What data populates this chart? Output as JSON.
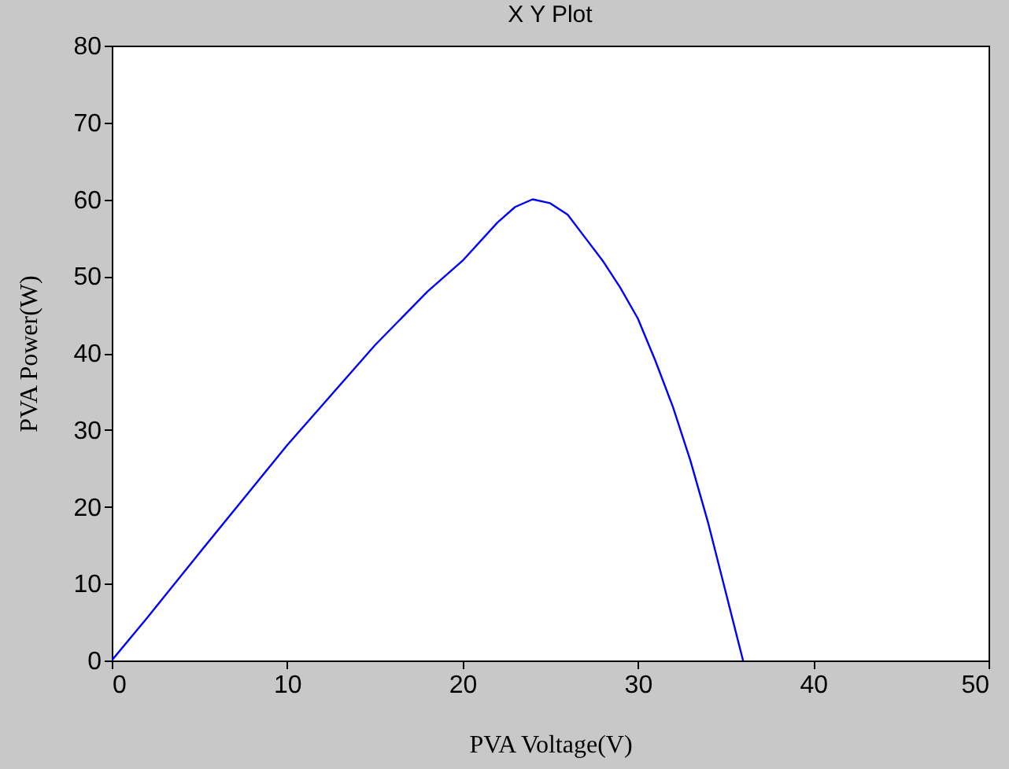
{
  "chart_data": {
    "type": "line",
    "title": "X Y Plot",
    "xlabel": "PVA  Voltage(V)",
    "ylabel": "PVA  Power(W)",
    "x": [
      0,
      2,
      5,
      10,
      15,
      18,
      20,
      22,
      23,
      24,
      25,
      26,
      27,
      28,
      29,
      30,
      31,
      32,
      33,
      34,
      35,
      36
    ],
    "series": [
      {
        "color": "#0000ff",
        "values": [
          0,
          5.5,
          14,
          28,
          41,
          48,
          52,
          57,
          59,
          60,
          59.5,
          58,
          55,
          52,
          48.5,
          44.5,
          39,
          33,
          26,
          18,
          9,
          0
        ]
      }
    ],
    "xlim": [
      0,
      50
    ],
    "xticks": [
      0,
      10,
      20,
      30,
      40,
      50
    ],
    "ylim": [
      0,
      80
    ],
    "yticks": [
      0,
      10,
      20,
      30,
      40,
      50,
      60,
      70,
      80
    ],
    "grid": false,
    "marker": "none",
    "line_style": "solid"
  }
}
